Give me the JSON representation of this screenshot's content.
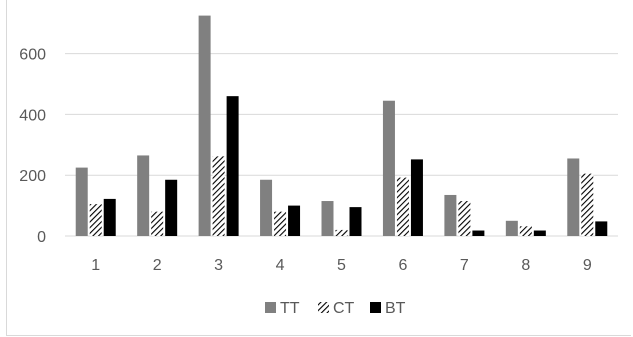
{
  "chart_data": {
    "type": "bar",
    "title": "",
    "xlabel": "",
    "ylabel": "",
    "categories": [
      "1",
      "2",
      "3",
      "4",
      "5",
      "6",
      "7",
      "8",
      "9"
    ],
    "ylim": [
      0,
      750
    ],
    "yticks": [
      0,
      200,
      400,
      600
    ],
    "grid": "horizontal",
    "legend": "bottom",
    "series": [
      {
        "name": "TT",
        "color": "#808080",
        "pattern": "solid",
        "values": [
          225,
          265,
          725,
          185,
          115,
          445,
          135,
          50,
          255
        ]
      },
      {
        "name": "CT",
        "color": "#000000",
        "pattern": "diagonal-hatch",
        "values": [
          105,
          80,
          262,
          80,
          20,
          192,
          115,
          32,
          205
        ]
      },
      {
        "name": "BT",
        "color": "#000000",
        "pattern": "solid",
        "values": [
          122,
          185,
          460,
          100,
          95,
          252,
          18,
          18,
          48
        ]
      }
    ]
  }
}
